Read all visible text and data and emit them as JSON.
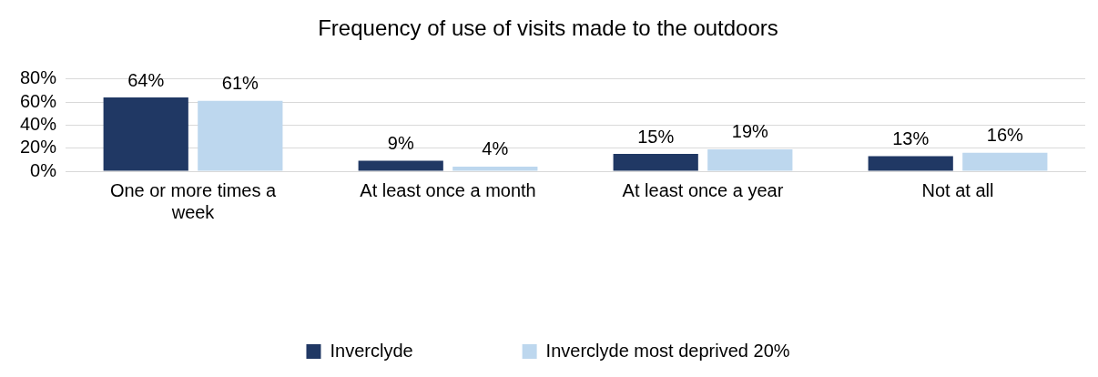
{
  "chart_data": {
    "type": "bar",
    "title": "Frequency of use of visits made to the outdoors",
    "categories": [
      "One or more times a week",
      "At least once a month",
      "At least once a year",
      "Not at all"
    ],
    "series": [
      {
        "name": "Inverclyde",
        "color": "#203864",
        "values": [
          64,
          9,
          15,
          13
        ],
        "value_labels": [
          "64%",
          "9%",
          "15%",
          "13%"
        ]
      },
      {
        "name": "Inverclyde most deprived 20%",
        "color": "#bdd7ee",
        "values": [
          61,
          4,
          19,
          16
        ],
        "value_labels": [
          "61%",
          "4%",
          "19%",
          "16%"
        ]
      }
    ],
    "ylim": [
      0,
      80
    ],
    "yticks": [
      {
        "value": 0,
        "label": "0%"
      },
      {
        "value": 20,
        "label": "20%"
      },
      {
        "value": 40,
        "label": "40%"
      },
      {
        "value": 60,
        "label": "60%"
      },
      {
        "value": 80,
        "label": "80%"
      }
    ],
    "grid": "y",
    "legend": "bottom"
  }
}
